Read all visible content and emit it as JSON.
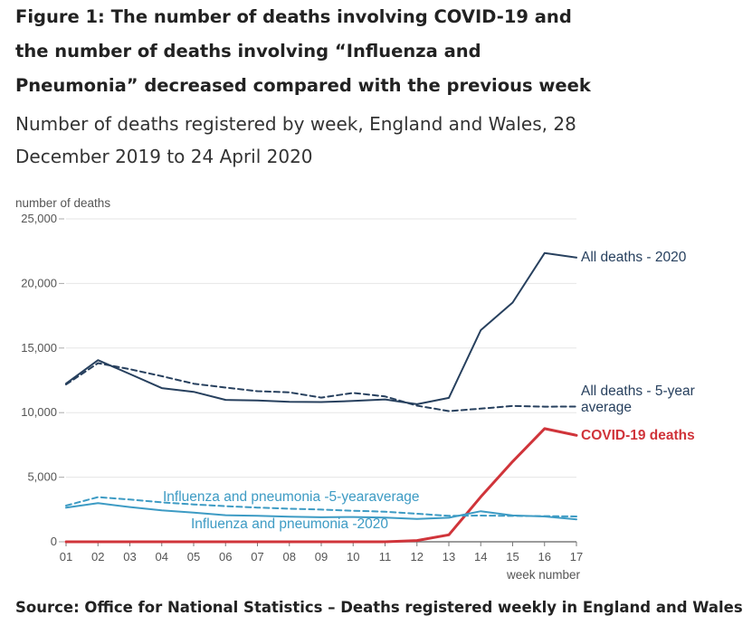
{
  "title": "Figure 1: The number of deaths involving COVID-19 and the number of deaths involving “Influenza and Pneumonia” decreased compared with the previous week",
  "subtitle": "Number of deaths registered by week, England and Wales, 28 December 2019 to 24 April 2020",
  "source": "Source: Office for National Statistics – Deaths registered weekly in England and Wales",
  "chart_data": {
    "type": "line",
    "ylabel": "number of deaths",
    "xlabel": "week number",
    "ylim": [
      0,
      25000
    ],
    "yticks": [
      0,
      5000,
      10000,
      15000,
      20000,
      25000
    ],
    "ytick_labels": [
      "0",
      "5,000",
      "10,000",
      "15,000",
      "20,000",
      "25,000"
    ],
    "categories": [
      "01",
      "02",
      "03",
      "04",
      "05",
      "06",
      "07",
      "08",
      "09",
      "10",
      "11",
      "12",
      "13",
      "14",
      "15",
      "16",
      "17"
    ],
    "grid": true,
    "series": [
      {
        "name": "All deaths - 2020",
        "color": "#27405e",
        "style": "solid",
        "width": 2,
        "values": [
          12250,
          14060,
          12990,
          11900,
          11610,
          10990,
          10940,
          10840,
          10820,
          10900,
          11020,
          10650,
          11140,
          16390,
          18520,
          22350,
          22000
        ]
      },
      {
        "name": "All deaths - 5-year average",
        "color": "#27405e",
        "style": "dashed",
        "width": 2,
        "values": [
          12180,
          13830,
          13360,
          12820,
          12240,
          11940,
          11660,
          11570,
          11160,
          11530,
          11250,
          10540,
          10120,
          10310,
          10520,
          10460,
          10470
        ]
      },
      {
        "name": "COVID-19 deaths",
        "color": "#d0343a",
        "style": "solid",
        "width": 3,
        "values": [
          0,
          0,
          0,
          0,
          0,
          0,
          0,
          0,
          0,
          0,
          0,
          100,
          540,
          3480,
          6210,
          8760,
          8240
        ]
      },
      {
        "name": "Influenza and pneumonia -5-yearaverage",
        "color": "#3d9bc4",
        "style": "dashed",
        "width": 2,
        "values": [
          2800,
          3460,
          3270,
          3050,
          2890,
          2760,
          2650,
          2560,
          2490,
          2400,
          2330,
          2170,
          2010,
          2030,
          2000,
          1990,
          1960
        ]
      },
      {
        "name": "Influenza and pneumonia -2020",
        "color": "#3d9bc4",
        "style": "solid",
        "width": 2,
        "values": [
          2640,
          2990,
          2690,
          2440,
          2260,
          2060,
          2010,
          1950,
          1900,
          1920,
          1880,
          1770,
          1860,
          2370,
          2040,
          1960,
          1740
        ]
      }
    ]
  }
}
